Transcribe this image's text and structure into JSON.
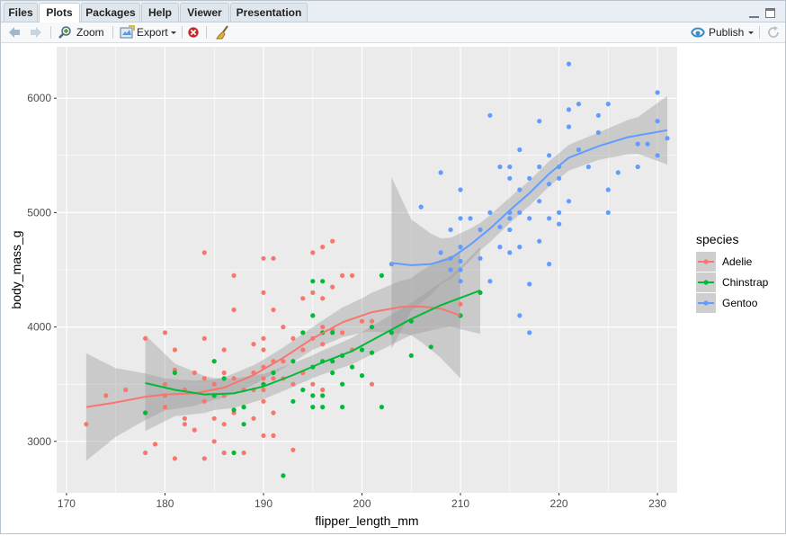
{
  "tabs": [
    {
      "label": "Files",
      "active": false
    },
    {
      "label": "Plots",
      "active": true
    },
    {
      "label": "Packages",
      "active": false
    },
    {
      "label": "Help",
      "active": false
    },
    {
      "label": "Viewer",
      "active": false
    },
    {
      "label": "Presentation",
      "active": false
    }
  ],
  "toolbar": {
    "back_icon": "arrow-left-icon",
    "forward_icon": "arrow-right-icon",
    "zoom_label": "Zoom",
    "export_label": "Export",
    "remove_icon": "remove-plot-icon",
    "clear_icon": "broom-icon",
    "publish_label": "Publish",
    "refresh_icon": "refresh-icon"
  },
  "colors": {
    "Adelie": "#F8766D",
    "Chinstrap": "#00BA38",
    "Gentoo": "#619CFF",
    "panel": "#EBEBEB",
    "ribbon": "#999999"
  },
  "chart_data": {
    "type": "scatter",
    "xlabel": "flipper_length_mm",
    "ylabel": "body_mass_g",
    "xlim": [
      169,
      232
    ],
    "ylim": [
      2550,
      6450
    ],
    "xticks": [
      170,
      180,
      190,
      200,
      210,
      220,
      230
    ],
    "yticks": [
      3000,
      4000,
      5000,
      6000
    ],
    "grid": true,
    "legend": {
      "title": "species",
      "position": "right",
      "entries": [
        "Adelie",
        "Chinstrap",
        "Gentoo"
      ]
    },
    "series": [
      {
        "name": "Adelie",
        "points": [
          [
            172,
            3150
          ],
          [
            174,
            3400
          ],
          [
            176,
            3450
          ],
          [
            178,
            3900
          ],
          [
            178,
            2900
          ],
          [
            179,
            2975
          ],
          [
            180,
            3950
          ],
          [
            180,
            3500
          ],
          [
            180,
            3400
          ],
          [
            180,
            3300
          ],
          [
            181,
            3625
          ],
          [
            181,
            3800
          ],
          [
            181,
            2850
          ],
          [
            182,
            3200
          ],
          [
            182,
            3450
          ],
          [
            182,
            3150
          ],
          [
            183,
            3600
          ],
          [
            183,
            3100
          ],
          [
            184,
            3900
          ],
          [
            184,
            4650
          ],
          [
            184,
            3550
          ],
          [
            184,
            3350
          ],
          [
            184,
            2850
          ],
          [
            185,
            3700
          ],
          [
            185,
            3500
          ],
          [
            185,
            3200
          ],
          [
            185,
            3000
          ],
          [
            186,
            3800
          ],
          [
            186,
            3600
          ],
          [
            186,
            3400
          ],
          [
            186,
            3150
          ],
          [
            186,
            2900
          ],
          [
            187,
            4450
          ],
          [
            187,
            4150
          ],
          [
            187,
            3550
          ],
          [
            187,
            3250
          ],
          [
            188,
            3450
          ],
          [
            188,
            3300
          ],
          [
            188,
            2900
          ],
          [
            189,
            3850
          ],
          [
            189,
            3600
          ],
          [
            189,
            3450
          ],
          [
            189,
            3200
          ],
          [
            190,
            4600
          ],
          [
            190,
            4300
          ],
          [
            190,
            3900
          ],
          [
            190,
            3800
          ],
          [
            190,
            3650
          ],
          [
            190,
            3550
          ],
          [
            190,
            3450
          ],
          [
            190,
            3350
          ],
          [
            190,
            3050
          ],
          [
            191,
            4600
          ],
          [
            191,
            4150
          ],
          [
            191,
            3700
          ],
          [
            191,
            3550
          ],
          [
            191,
            3250
          ],
          [
            191,
            3050
          ],
          [
            192,
            4000
          ],
          [
            192,
            3700
          ],
          [
            192,
            3550
          ],
          [
            193,
            3900
          ],
          [
            193,
            3500
          ],
          [
            193,
            2925
          ],
          [
            194,
            4250
          ],
          [
            194,
            3800
          ],
          [
            194,
            3600
          ],
          [
            195,
            4650
          ],
          [
            195,
            4300
          ],
          [
            195,
            3900
          ],
          [
            195,
            3500
          ],
          [
            196,
            4700
          ],
          [
            196,
            4250
          ],
          [
            196,
            4000
          ],
          [
            196,
            3850
          ],
          [
            196,
            3450
          ],
          [
            197,
            4750
          ],
          [
            197,
            4350
          ],
          [
            197,
            3975
          ],
          [
            198,
            4450
          ],
          [
            198,
            3950
          ],
          [
            199,
            4450
          ],
          [
            199,
            3800
          ],
          [
            200,
            4050
          ],
          [
            201,
            3500
          ],
          [
            201,
            4050
          ],
          [
            210,
            4200
          ]
        ],
        "trend": [
          [
            172,
            3300
          ],
          [
            175,
            3340
          ],
          [
            178,
            3390
          ],
          [
            180,
            3410
          ],
          [
            183,
            3420
          ],
          [
            186,
            3470
          ],
          [
            189,
            3580
          ],
          [
            192,
            3730
          ],
          [
            195,
            3900
          ],
          [
            198,
            4040
          ],
          [
            201,
            4130
          ],
          [
            204,
            4175
          ],
          [
            206,
            4180
          ],
          [
            208,
            4160
          ],
          [
            210,
            4100
          ]
        ],
        "band_width": [
          [
            172,
            470
          ],
          [
            175,
            300
          ],
          [
            180,
            140
          ],
          [
            185,
            90
          ],
          [
            190,
            85
          ],
          [
            195,
            100
          ],
          [
            200,
            150
          ],
          [
            205,
            250
          ],
          [
            210,
            550
          ]
        ]
      },
      {
        "name": "Chinstrap",
        "points": [
          [
            178,
            3250
          ],
          [
            181,
            3600
          ],
          [
            185,
            3700
          ],
          [
            185,
            3400
          ],
          [
            186,
            3550
          ],
          [
            187,
            3275
          ],
          [
            187,
            2900
          ],
          [
            188,
            3300
          ],
          [
            188,
            3150
          ],
          [
            190,
            3500
          ],
          [
            191,
            3600
          ],
          [
            192,
            2700
          ],
          [
            193,
            3350
          ],
          [
            193,
            3700
          ],
          [
            194,
            3450
          ],
          [
            194,
            3950
          ],
          [
            195,
            4400
          ],
          [
            195,
            4100
          ],
          [
            195,
            3650
          ],
          [
            195,
            3400
          ],
          [
            195,
            3300
          ],
          [
            196,
            4400
          ],
          [
            196,
            3950
          ],
          [
            196,
            3700
          ],
          [
            196,
            3400
          ],
          [
            196,
            3300
          ],
          [
            197,
            3700
          ],
          [
            197,
            3950
          ],
          [
            197,
            3600
          ],
          [
            198,
            3750
          ],
          [
            198,
            3500
          ],
          [
            198,
            3300
          ],
          [
            199,
            3650
          ],
          [
            200,
            3800
          ],
          [
            200,
            3575
          ],
          [
            201,
            4000
          ],
          [
            201,
            3775
          ],
          [
            202,
            3300
          ],
          [
            202,
            4450
          ],
          [
            203,
            3950
          ],
          [
            205,
            4050
          ],
          [
            205,
            3750
          ],
          [
            207,
            3825
          ],
          [
            210,
            4100
          ],
          [
            212,
            4300
          ]
        ],
        "trend": [
          [
            178,
            3510
          ],
          [
            181,
            3450
          ],
          [
            184,
            3410
          ],
          [
            187,
            3420
          ],
          [
            190,
            3480
          ],
          [
            193,
            3580
          ],
          [
            196,
            3690
          ],
          [
            199,
            3790
          ],
          [
            202,
            3930
          ],
          [
            205,
            4070
          ],
          [
            208,
            4190
          ],
          [
            212,
            4320
          ]
        ],
        "band_width": [
          [
            178,
            420
          ],
          [
            181,
            230
          ],
          [
            185,
            140
          ],
          [
            190,
            110
          ],
          [
            195,
            100
          ],
          [
            200,
            120
          ],
          [
            205,
            140
          ],
          [
            209,
            220
          ],
          [
            212,
            380
          ]
        ]
      },
      {
        "name": "Gentoo",
        "points": [
          [
            203,
            4550
          ],
          [
            206,
            5050
          ],
          [
            208,
            4650
          ],
          [
            208,
            5350
          ],
          [
            209,
            4600
          ],
          [
            209,
            4500
          ],
          [
            209,
            4850
          ],
          [
            210,
            4700
          ],
          [
            210,
            4400
          ],
          [
            210,
            4500
          ],
          [
            210,
            4950
          ],
          [
            210,
            5200
          ],
          [
            210,
            4575
          ],
          [
            211,
            4950
          ],
          [
            212,
            4850
          ],
          [
            212,
            4600
          ],
          [
            213,
            5000
          ],
          [
            213,
            4400
          ],
          [
            213,
            5850
          ],
          [
            214,
            4875
          ],
          [
            214,
            5400
          ],
          [
            214,
            4700
          ],
          [
            215,
            5400
          ],
          [
            215,
            5300
          ],
          [
            215,
            5000
          ],
          [
            215,
            4950
          ],
          [
            215,
            4850
          ],
          [
            215,
            4650
          ],
          [
            216,
            5550
          ],
          [
            216,
            5200
          ],
          [
            216,
            4700
          ],
          [
            216,
            4100
          ],
          [
            216,
            5000
          ],
          [
            217,
            4950
          ],
          [
            217,
            5300
          ],
          [
            217,
            3950
          ],
          [
            217,
            4375
          ],
          [
            218,
            5800
          ],
          [
            218,
            5400
          ],
          [
            218,
            5100
          ],
          [
            218,
            4750
          ],
          [
            219,
            5500
          ],
          [
            219,
            5250
          ],
          [
            219,
            4950
          ],
          [
            219,
            4550
          ],
          [
            220,
            5400
          ],
          [
            220,
            5000
          ],
          [
            220,
            4900
          ],
          [
            220,
            5300
          ],
          [
            221,
            5900
          ],
          [
            221,
            6300
          ],
          [
            221,
            5100
          ],
          [
            221,
            5750
          ],
          [
            222,
            5950
          ],
          [
            222,
            5550
          ],
          [
            223,
            5400
          ],
          [
            224,
            5850
          ],
          [
            224,
            5700
          ],
          [
            225,
            5950
          ],
          [
            225,
            5200
          ],
          [
            225,
            5000
          ],
          [
            226,
            5350
          ],
          [
            228,
            5600
          ],
          [
            228,
            5400
          ],
          [
            229,
            5600
          ],
          [
            230,
            6050
          ],
          [
            230,
            5800
          ],
          [
            230,
            5500
          ],
          [
            231,
            5650
          ]
        ],
        "trend": [
          [
            203,
            4560
          ],
          [
            205,
            4540
          ],
          [
            207,
            4550
          ],
          [
            209,
            4600
          ],
          [
            211,
            4720
          ],
          [
            213,
            4860
          ],
          [
            215,
            5020
          ],
          [
            217,
            5170
          ],
          [
            219,
            5340
          ],
          [
            221,
            5480
          ],
          [
            224,
            5580
          ],
          [
            227,
            5660
          ],
          [
            231,
            5720
          ]
        ],
        "band_width": [
          [
            203,
            750
          ],
          [
            205,
            400
          ],
          [
            208,
            200
          ],
          [
            212,
            120
          ],
          [
            216,
            110
          ],
          [
            220,
            110
          ],
          [
            224,
            120
          ],
          [
            228,
            160
          ],
          [
            231,
            300
          ]
        ]
      }
    ]
  }
}
